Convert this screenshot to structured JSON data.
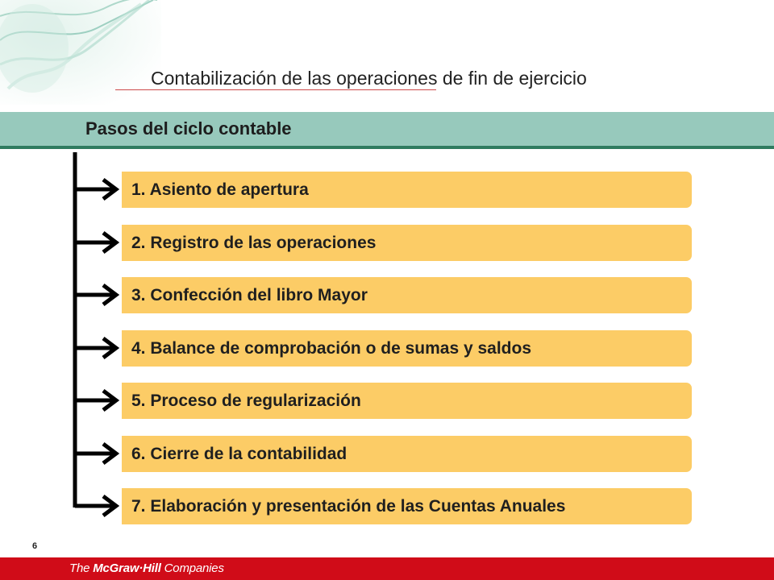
{
  "header": {
    "title": "Contabilización de las operaciones de fin de ejercicio"
  },
  "section": {
    "title": "Pasos del ciclo contable"
  },
  "steps": [
    {
      "label": "1. Asiento de apertura"
    },
    {
      "label": "2. Registro de las operaciones"
    },
    {
      "label": "3. Confección del libro Mayor"
    },
    {
      "label": "4. Balance de comprobación o de sumas y saldos"
    },
    {
      "label": "5. Proceso de regularización"
    },
    {
      "label": "6. Cierre de la contabilidad"
    },
    {
      "label": "7. Elaboración y presentación de las Cuentas Anuales"
    }
  ],
  "footer": {
    "page_number": "6",
    "logo_prefix": "The ",
    "logo_brand": "McGraw·Hill",
    "logo_suffix": " Companies"
  },
  "colors": {
    "band": "#97c9bc",
    "band_border": "#2f7b5f",
    "step_fill": "#fccc66",
    "footer": "#d00c18"
  }
}
